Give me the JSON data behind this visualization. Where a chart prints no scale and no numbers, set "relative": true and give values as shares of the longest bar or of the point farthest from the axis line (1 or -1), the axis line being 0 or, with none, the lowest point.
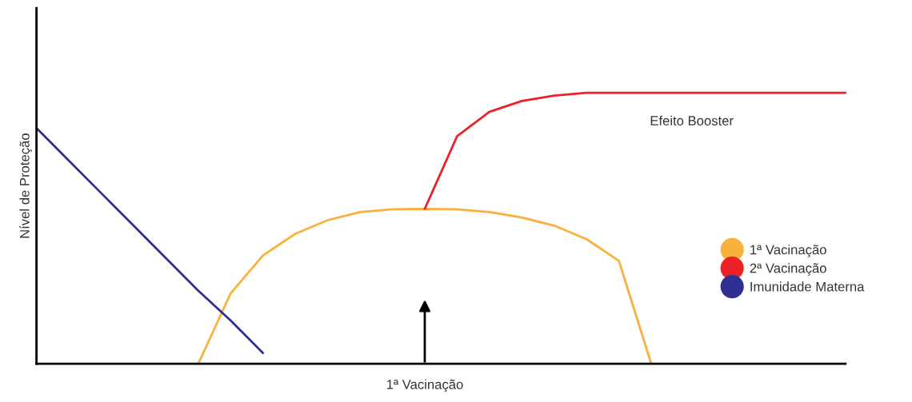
{
  "chart_data": {
    "type": "line",
    "relative": true,
    "ylabel": "Nível de Proteção",
    "legend": "right",
    "marker": "none",
    "line_style": "solid",
    "categories": [
      null,
      null,
      null,
      null,
      null,
      null,
      null,
      null,
      null,
      null,
      null,
      null,
      null,
      null,
      null,
      null,
      null,
      null,
      null,
      null,
      null,
      null,
      null,
      null,
      null,
      null
    ],
    "series": [
      {
        "name": "1ª Vacinação",
        "color": "#f9b03c",
        "values": [
          null,
          null,
          null,
          null,
          null,
          0,
          0.26,
          0.4,
          0.48,
          0.53,
          0.56,
          0.57,
          0.572,
          0.57,
          0.56,
          0.54,
          0.51,
          0.46,
          0.38,
          0,
          null,
          null,
          null,
          null,
          null,
          null
        ]
      },
      {
        "name": "2ª Vacinação",
        "color": "#ee2128",
        "values": [
          null,
          null,
          null,
          null,
          null,
          null,
          null,
          null,
          null,
          null,
          null,
          null,
          0.572,
          0.84,
          0.93,
          0.97,
          0.99,
          1,
          1,
          1,
          1,
          1,
          1,
          1,
          1,
          1
        ]
      },
      {
        "name": "Imunidade Materna",
        "color": "#2e3192",
        "values": [
          0.87,
          0.75,
          0.63,
          0.51,
          0.39,
          0.27,
          0.16,
          0.04,
          null,
          null,
          null,
          null,
          null,
          null,
          null,
          null,
          null,
          null,
          null,
          null,
          null,
          null,
          null,
          null,
          null,
          null
        ]
      }
    ],
    "annotations": [
      "1ª Vacinação",
      "Efeito Booster"
    ]
  }
}
